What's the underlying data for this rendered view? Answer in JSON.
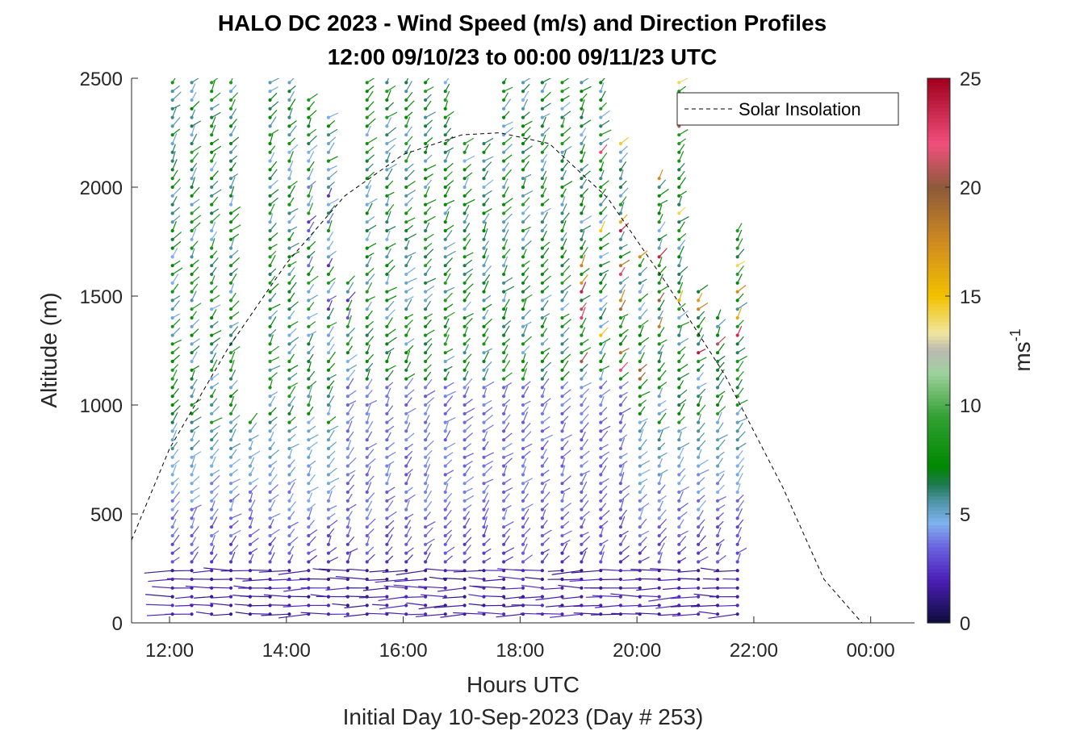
{
  "chart_data": {
    "type": "wind-barb profile",
    "title": "HALO DC 2023 - Wind Speed (m/s) and Direction Profiles",
    "subtitle": "12:00 09/10/23 to 00:00 09/11/23  UTC",
    "xlabel": "Hours UTC",
    "footer": "Initial Day 10-Sep-2023 (Day # 253)",
    "ylabel": "Altitude (m)",
    "xlim": [
      11.35,
      24.75
    ],
    "ylim": [
      0,
      2500
    ],
    "x_ticks": [
      "12:00",
      "14:00",
      "16:00",
      "18:00",
      "20:00",
      "22:00",
      "00:00"
    ],
    "x_tick_hours": [
      12,
      14,
      16,
      18,
      20,
      22,
      24
    ],
    "y_ticks": [
      "0",
      "500",
      "1000",
      "1500",
      "2000",
      "2500"
    ],
    "y_tick_values": [
      0,
      500,
      1000,
      1500,
      2000,
      2500
    ],
    "colorbar": {
      "label": "ms",
      "label_exponent": "-1",
      "range": [
        0,
        25
      ],
      "ticks": [
        "0",
        "5",
        "10",
        "15",
        "20",
        "25"
      ],
      "tick_values": [
        0,
        5,
        10,
        15,
        20,
        25
      ],
      "stops": [
        {
          "v": 0,
          "c": "#0d0c3a"
        },
        {
          "v": 2,
          "c": "#4b1fb8"
        },
        {
          "v": 3.5,
          "c": "#6b63e0"
        },
        {
          "v": 4.6,
          "c": "#7fb2ee"
        },
        {
          "v": 5.6,
          "c": "#4e94a6"
        },
        {
          "v": 6.4,
          "c": "#1c7a4c"
        },
        {
          "v": 7.2,
          "c": "#008800"
        },
        {
          "v": 9.5,
          "c": "#33a033"
        },
        {
          "v": 11.5,
          "c": "#9fd29f"
        },
        {
          "v": 12.5,
          "c": "#b8b8b0"
        },
        {
          "v": 13.3,
          "c": "#f0e6a0"
        },
        {
          "v": 15,
          "c": "#f2c200"
        },
        {
          "v": 17.5,
          "c": "#cf8a20"
        },
        {
          "v": 20,
          "c": "#8c5a3a"
        },
        {
          "v": 22,
          "c": "#f0507c"
        },
        {
          "v": 25,
          "c": "#a0001c"
        }
      ]
    },
    "legend": {
      "entries": [
        "Solar Insolation"
      ],
      "placement": "top-right"
    },
    "solar_insolation": {
      "style": "dashed",
      "color": "#000000",
      "x": [
        11.35,
        12.0,
        13.0,
        14.0,
        15.0,
        16.0,
        17.0,
        17.65,
        18.5,
        19.5,
        20.5,
        21.5,
        22.5,
        23.2,
        23.85,
        24.75
      ],
      "y": [
        380,
        800,
        1260,
        1650,
        1960,
        2150,
        2240,
        2250,
        2200,
        1950,
        1560,
        1140,
        620,
        200,
        0,
        0
      ]
    },
    "profiles": {
      "times": [
        12.05,
        12.38,
        12.72,
        13.05,
        13.38,
        13.72,
        14.05,
        14.38,
        14.72,
        15.05,
        15.38,
        15.72,
        16.05,
        16.38,
        16.72,
        17.05,
        17.38,
        17.72,
        18.05,
        18.38,
        18.72,
        19.05,
        19.38,
        19.72,
        20.05,
        20.38,
        20.72,
        21.05,
        21.38,
        21.72
      ],
      "top_altitudes": [
        2500,
        2500,
        2500,
        2500,
        950,
        2500,
        2500,
        2400,
        2350,
        1580,
        2500,
        2500,
        2500,
        2500,
        2500,
        2200,
        2200,
        2500,
        2500,
        2500,
        2500,
        2500,
        2500,
        2200,
        1700,
        2050,
        2500,
        1550,
        1400,
        1800
      ],
      "level_spacing_m": 40,
      "speeds_ms": "0-25 (colour-coded per barb)"
    },
    "grid": false
  }
}
